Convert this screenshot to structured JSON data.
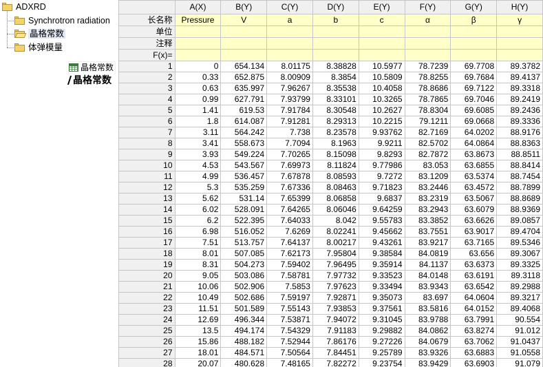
{
  "explorer": {
    "root": "ADXRD",
    "folders": [
      "Synchrotron radiation",
      "晶格常数",
      "体弹模量"
    ],
    "drag_item": "晶格常数",
    "rename_text": "晶格常数"
  },
  "sheet": {
    "columns": [
      "A(X)",
      "B(Y)",
      "C(Y)",
      "D(Y)",
      "E(Y)",
      "F(Y)",
      "G(Y)",
      "H(Y)"
    ],
    "meta_labels": [
      "长名称",
      "单位",
      "注释",
      "F(x)="
    ],
    "long_names": [
      "Pressure",
      "V",
      "a",
      "b",
      "c",
      "α",
      "β",
      "γ"
    ],
    "rows": [
      [
        "0",
        "654.134",
        "8.01175",
        "8.38828",
        "10.5977",
        "78.7239",
        "69.7708",
        "89.3782"
      ],
      [
        "0.33",
        "652.875",
        "8.00909",
        "8.3854",
        "10.5809",
        "78.8255",
        "69.7684",
        "89.4137"
      ],
      [
        "0.63",
        "635.997",
        "7.96267",
        "8.35538",
        "10.4058",
        "78.8686",
        "69.7122",
        "89.3318"
      ],
      [
        "0.99",
        "627.791",
        "7.93799",
        "8.33101",
        "10.3265",
        "78.7865",
        "69.7046",
        "89.2419"
      ],
      [
        "1.41",
        "619.53",
        "7.91784",
        "8.30548",
        "10.2627",
        "78.8304",
        "69.6085",
        "89.2436"
      ],
      [
        "1.8",
        "614.087",
        "7.91281",
        "8.29313",
        "10.2215",
        "79.1211",
        "69.0668",
        "89.3336"
      ],
      [
        "3.11",
        "564.242",
        "7.738",
        "8.23578",
        "9.93762",
        "82.7169",
        "64.0202",
        "88.9176"
      ],
      [
        "3.41",
        "558.673",
        "7.7094",
        "8.1963",
        "9.9211",
        "82.5702",
        "64.0864",
        "88.8363"
      ],
      [
        "3.93",
        "549.224",
        "7.70265",
        "8.15098",
        "9.8293",
        "82.7872",
        "63.8673",
        "88.8511"
      ],
      [
        "4.53",
        "543.567",
        "7.69973",
        "8.11824",
        "9.77986",
        "83.053",
        "63.6855",
        "88.8414"
      ],
      [
        "4.99",
        "536.457",
        "7.67878",
        "8.08593",
        "9.7272",
        "83.1209",
        "63.5374",
        "88.7454"
      ],
      [
        "5.3",
        "535.259",
        "7.67336",
        "8.08463",
        "9.71823",
        "83.2446",
        "63.4572",
        "88.7899"
      ],
      [
        "5.62",
        "531.14",
        "7.65399",
        "8.06858",
        "9.6837",
        "83.2319",
        "63.5067",
        "88.8689"
      ],
      [
        "6.02",
        "528.091",
        "7.64265",
        "8.06046",
        "9.64259",
        "83.2943",
        "63.6079",
        "88.9369"
      ],
      [
        "6.2",
        "522.395",
        "7.64033",
        "8.042",
        "9.55783",
        "83.3852",
        "63.6626",
        "89.0857"
      ],
      [
        "6.98",
        "516.052",
        "7.6269",
        "8.02241",
        "9.45662",
        "83.7551",
        "63.9017",
        "89.4704"
      ],
      [
        "7.51",
        "513.757",
        "7.64137",
        "8.00217",
        "9.43261",
        "83.9217",
        "63.7165",
        "89.5346"
      ],
      [
        "8.01",
        "507.085",
        "7.62173",
        "7.95804",
        "9.38584",
        "84.0819",
        "63.656",
        "89.3067"
      ],
      [
        "8.31",
        "504.273",
        "7.59402",
        "7.96495",
        "9.35914",
        "84.1137",
        "63.6373",
        "89.3325"
      ],
      [
        "9.05",
        "503.086",
        "7.58781",
        "7.97732",
        "9.33523",
        "84.0148",
        "63.6191",
        "89.3118"
      ],
      [
        "10.06",
        "502.906",
        "7.5853",
        "7.97623",
        "9.33494",
        "83.9343",
        "63.6542",
        "89.2988"
      ],
      [
        "10.49",
        "502.686",
        "7.59197",
        "7.92871",
        "9.35073",
        "83.697",
        "64.0604",
        "89.3217"
      ],
      [
        "11.51",
        "501.589",
        "7.55143",
        "7.93853",
        "9.37561",
        "83.5816",
        "64.0152",
        "89.4068"
      ],
      [
        "12.69",
        "496.344",
        "7.53871",
        "7.94072",
        "9.31045",
        "83.9788",
        "63.7991",
        "90.554"
      ],
      [
        "13.5",
        "494.174",
        "7.54329",
        "7.91183",
        "9.29882",
        "84.0862",
        "63.8274",
        "91.012"
      ],
      [
        "15.86",
        "488.182",
        "7.52944",
        "7.86176",
        "9.27226",
        "84.0679",
        "63.7062",
        "91.0437"
      ],
      [
        "18.01",
        "484.571",
        "7.50564",
        "7.84451",
        "9.25789",
        "83.9326",
        "63.6883",
        "91.0558"
      ],
      [
        "20.07",
        "480.628",
        "7.48165",
        "7.82272",
        "9.23754",
        "83.9429",
        "63.6903",
        "91.079"
      ]
    ]
  }
}
